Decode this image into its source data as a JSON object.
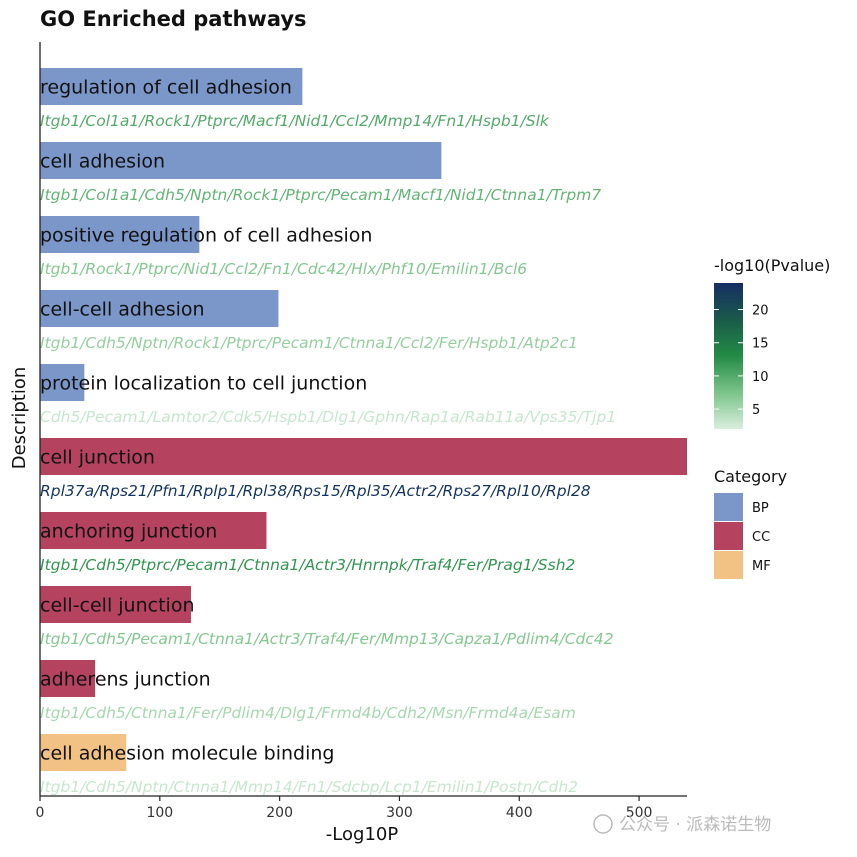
{
  "chart_data": {
    "type": "bar",
    "orientation": "horizontal",
    "title": "GO Enriched pathways",
    "xlabel": "-Log10P",
    "ylabel": "Description",
    "xlim": [
      0,
      540
    ],
    "x_ticks": [
      0,
      100,
      200,
      300,
      400,
      500
    ],
    "grid": false,
    "bars": [
      {
        "term": "regulation of cell adhesion",
        "value": 219,
        "category": "BP",
        "pvalue_log10": 10,
        "genes": "Itgb1/Col1a1/Rock1/Ptprc/Macf1/Nid1/Ccl2/Mmp14/Fn1/Hspb1/Slk"
      },
      {
        "term": "cell adhesion",
        "value": 335,
        "category": "BP",
        "pvalue_log10": 9,
        "genes": "Itgb1/Col1a1/Cdh5/Nptn/Rock1/Ptprc/Pecam1/Macf1/Nid1/Ctnna1/Trpm7"
      },
      {
        "term": "positive regulation of cell adhesion",
        "value": 133,
        "category": "BP",
        "pvalue_log10": 7,
        "genes": "Itgb1/Rock1/Ptprc/Nid1/Ccl2/Fn1/Cdc42/Hlx/Phf10/Emilin1/Bcl6"
      },
      {
        "term": "cell-cell adhesion",
        "value": 199,
        "category": "BP",
        "pvalue_log10": 6,
        "genes": "Itgb1/Cdh5/Nptn/Rock1/Ptprc/Pecam1/Ctnna1/Ccl2/Fer/Hspb1/Atp2c1"
      },
      {
        "term": "protein localization to cell junction",
        "value": 37,
        "category": "BP",
        "pvalue_log10": 3,
        "genes": "Cdh5/Pecam1/Lamtor2/Cdk5/Hspb1/Dlg1/Gphn/Rap1a/Rab11a/Vps35/Tjp1"
      },
      {
        "term": "cell junction",
        "value": 540,
        "category": "CC",
        "pvalue_log10": 23,
        "genes": "Rpl37a/Rps21/Pfn1/Rplp1/Rpl38/Rps15/Rpl35/Actr2/Rps27/Rpl10/Rpl28"
      },
      {
        "term": "anchoring junction",
        "value": 189,
        "category": "CC",
        "pvalue_log10": 12,
        "genes": "Itgb1/Cdh5/Ptprc/Pecam1/Ctnna1/Actr3/Hnrnpk/Traf4/Fer/Prag1/Ssh2"
      },
      {
        "term": "cell-cell junction",
        "value": 126,
        "category": "CC",
        "pvalue_log10": 7,
        "genes": "Itgb1/Cdh5/Pecam1/Ctnna1/Actr3/Traf4/Fer/Mmp13/Capza1/Pdlim4/Cdc42"
      },
      {
        "term": "adherens junction",
        "value": 46,
        "category": "CC",
        "pvalue_log10": 5,
        "genes": "Itgb1/Cdh5/Ctnna1/Fer/Pdlim4/Dlg1/Frmd4b/Cdh2/Msn/Frmd4a/Esam"
      },
      {
        "term": "cell adhesion molecule binding",
        "value": 72,
        "category": "MF",
        "pvalue_log10": 3,
        "genes": "Itgb1/Cdh5/Nptn/Ctnna1/Mmp14/Fn1/Sdcbp/Lcp1/Emilin1/Postn/Cdh2"
      }
    ],
    "legend_pvalue": {
      "title": "-log10(Pvalue)",
      "ticks": [
        5,
        10,
        15,
        20
      ],
      "range": [
        2,
        24
      ],
      "colors": [
        "#d9eedd",
        "#7cc48a",
        "#238b45",
        "#1a5a4a",
        "#152d63"
      ]
    },
    "legend_category": {
      "title": "Category",
      "entries": [
        {
          "label": "BP",
          "color": "#7b97c9"
        },
        {
          "label": "CC",
          "color": "#b5435f"
        },
        {
          "label": "MF",
          "color": "#f2c285"
        }
      ]
    }
  },
  "watermark": "公众号 · 派森诺生物"
}
